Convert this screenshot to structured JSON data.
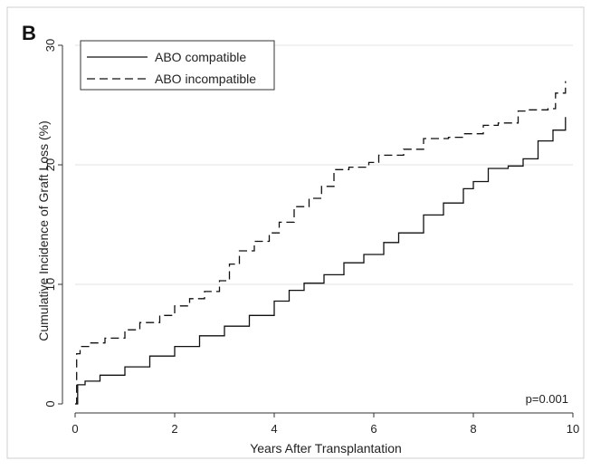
{
  "panel_label": "B",
  "chart_data": {
    "type": "line",
    "xlabel": "Years After Transplantation",
    "ylabel": "Cumulative Incidence of Graft Loss (%)",
    "xlim": [
      0,
      10
    ],
    "ylim": [
      0,
      30
    ],
    "xticks": [
      0,
      2,
      4,
      6,
      8,
      10
    ],
    "yticks": [
      0,
      10,
      20,
      30
    ],
    "grid": "horizontal",
    "legend_position": "top-left",
    "annotation": "p=0.001",
    "series": [
      {
        "name": "ABO compatible",
        "style": "solid",
        "color": "#111111",
        "x": [
          0,
          0.05,
          0.2,
          0.5,
          1.0,
          1.5,
          2.0,
          2.5,
          3.0,
          3.5,
          4.0,
          4.3,
          4.6,
          5.0,
          5.4,
          5.8,
          6.2,
          6.5,
          7.0,
          7.4,
          7.8,
          8.0,
          8.3,
          8.7,
          9.0,
          9.3,
          9.6,
          9.85
        ],
        "y": [
          0,
          1.6,
          1.9,
          2.4,
          3.1,
          4.0,
          4.8,
          5.7,
          6.5,
          7.4,
          8.6,
          9.5,
          10.1,
          10.8,
          11.8,
          12.5,
          13.5,
          14.3,
          15.8,
          16.8,
          18.0,
          18.6,
          19.7,
          19.9,
          20.5,
          22.0,
          22.9,
          24.0
        ]
      },
      {
        "name": "ABO incompatible",
        "style": "dashed",
        "color": "#111111",
        "x": [
          0,
          0.03,
          0.1,
          0.3,
          0.6,
          1.0,
          1.3,
          1.7,
          2.0,
          2.3,
          2.6,
          2.9,
          3.1,
          3.3,
          3.6,
          3.9,
          4.1,
          4.4,
          4.7,
          4.95,
          5.2,
          5.5,
          5.9,
          6.1,
          6.6,
          7.0,
          7.5,
          7.8,
          8.2,
          8.5,
          8.9,
          9.1,
          9.5,
          9.65,
          9.85
        ],
        "y": [
          0,
          4.2,
          4.8,
          5.1,
          5.5,
          6.2,
          6.8,
          7.4,
          8.2,
          8.8,
          9.4,
          10.3,
          11.7,
          12.8,
          13.6,
          14.3,
          15.2,
          16.5,
          17.2,
          18.2,
          19.6,
          19.8,
          20.2,
          20.8,
          21.3,
          22.2,
          22.3,
          22.6,
          23.3,
          23.5,
          24.5,
          24.6,
          24.7,
          26.0,
          27.0
        ]
      }
    ]
  }
}
